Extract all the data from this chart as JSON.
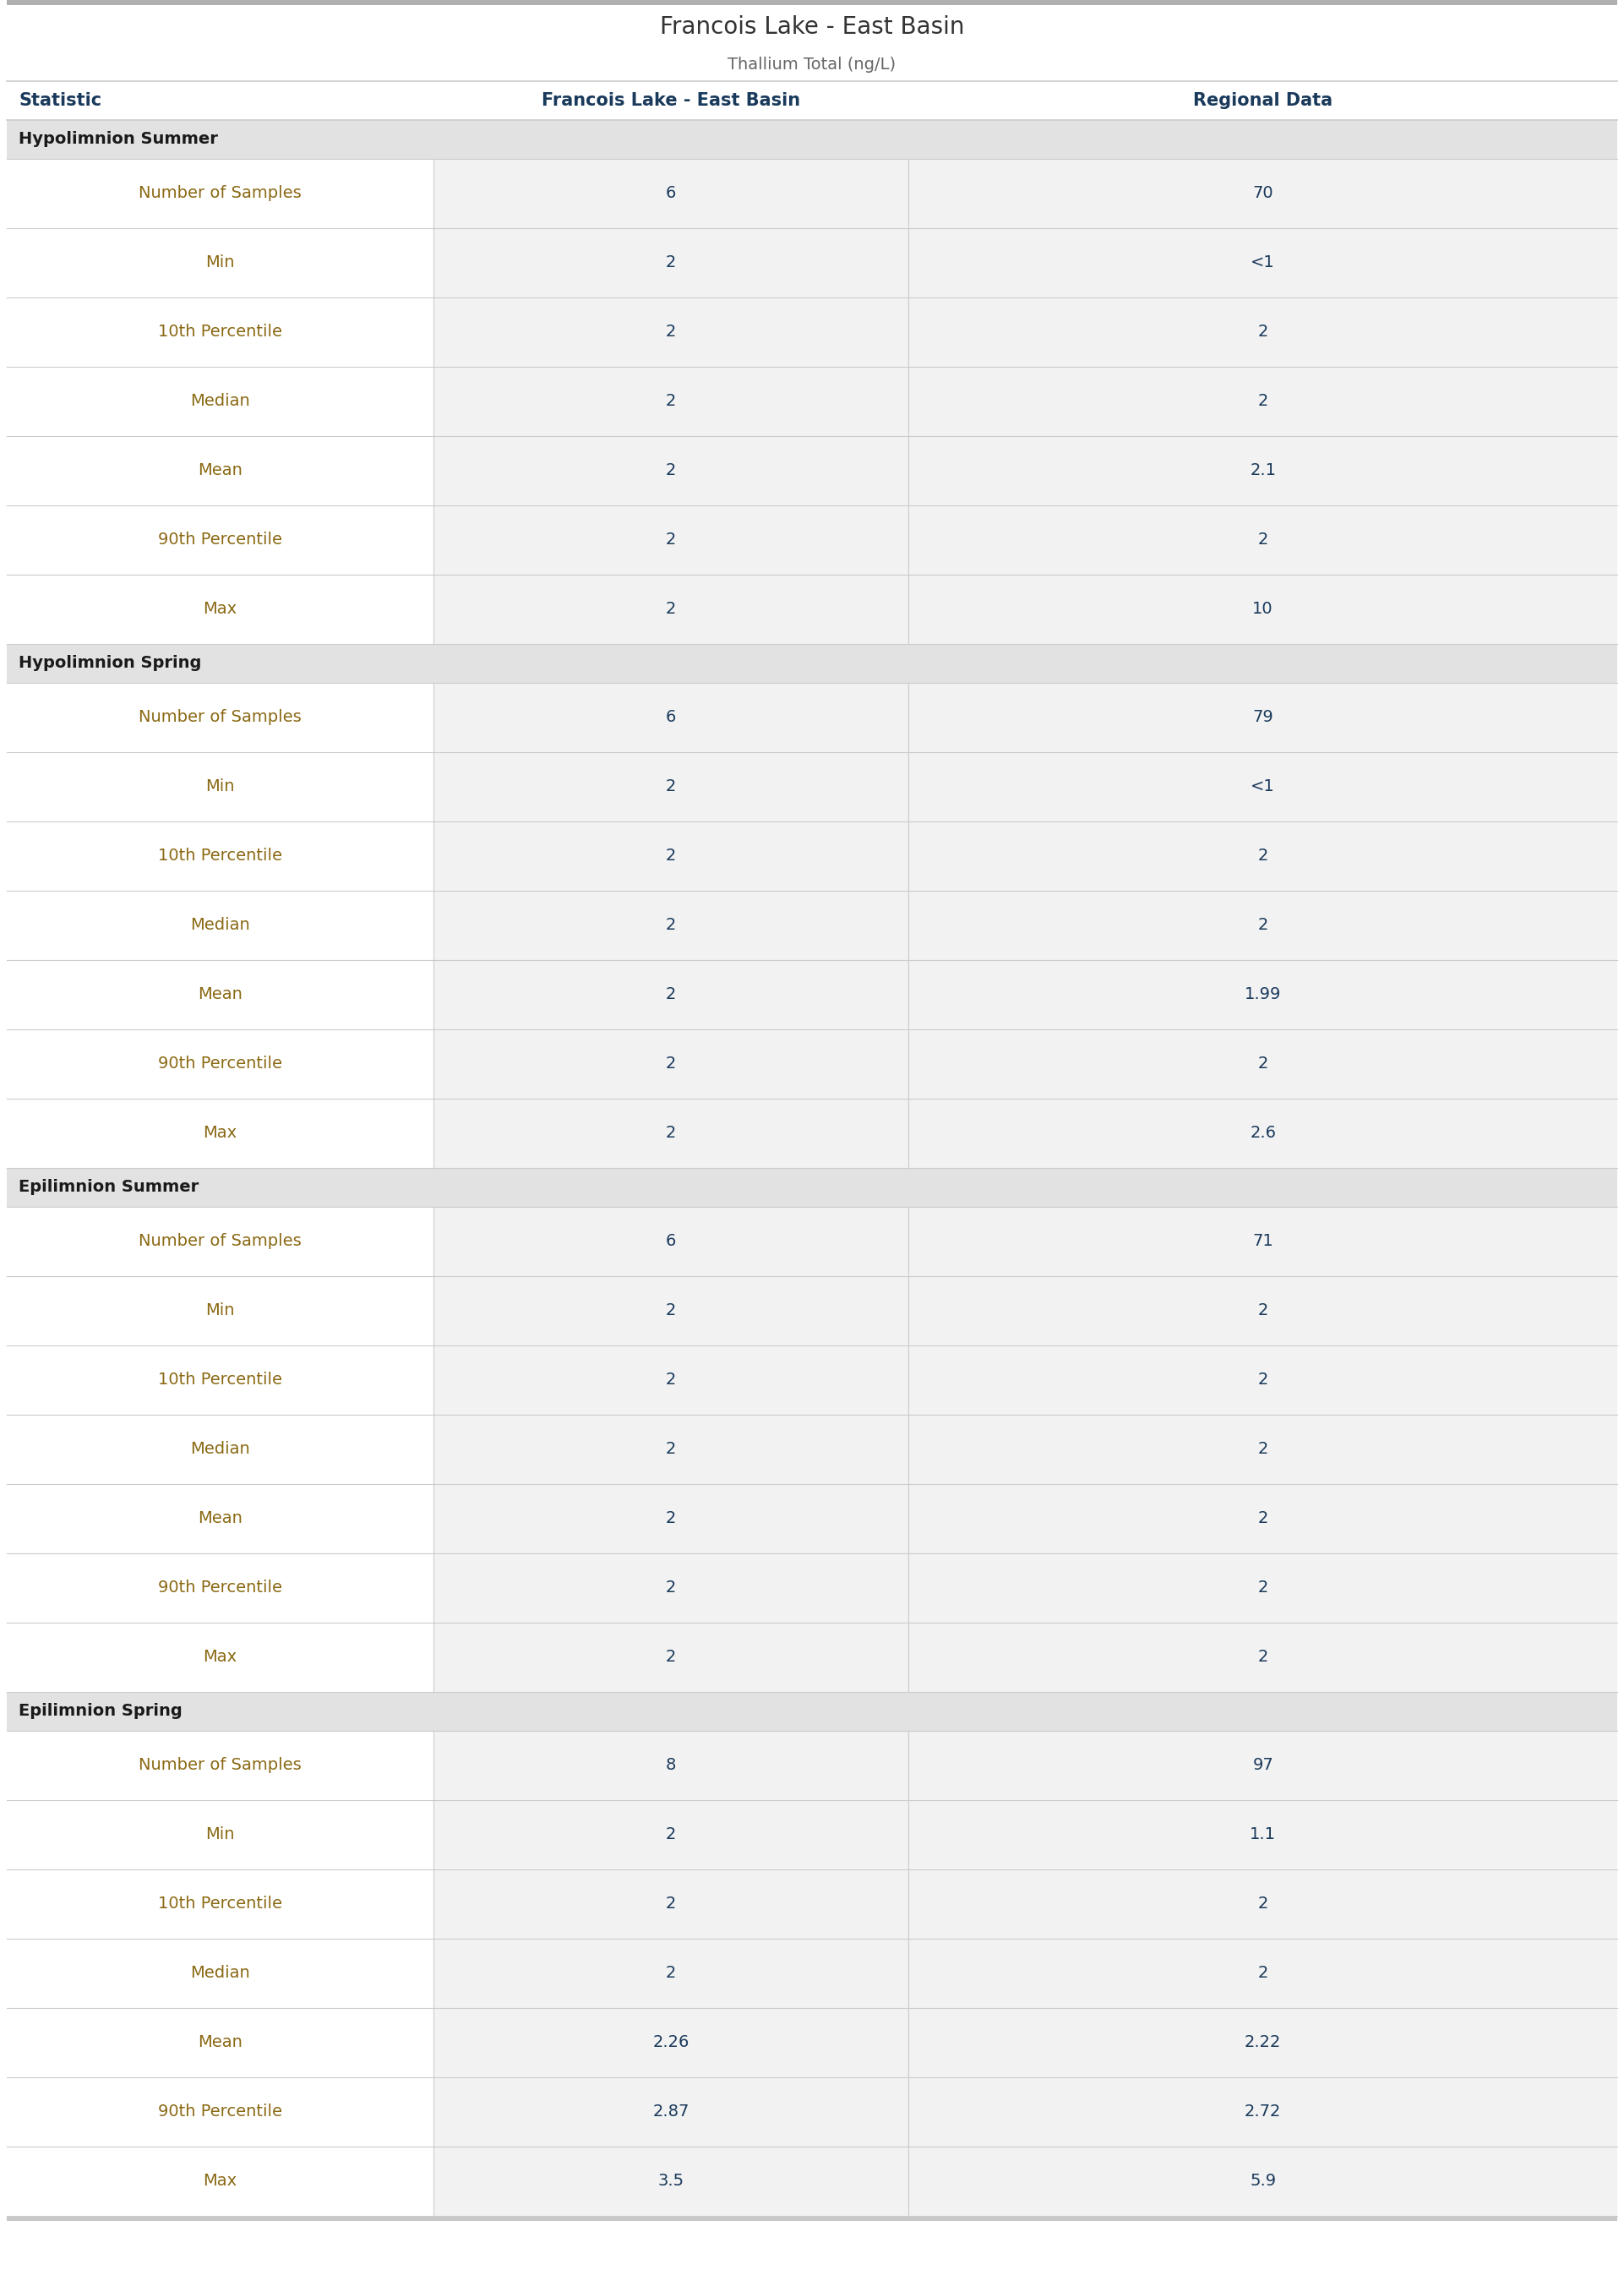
{
  "title": "Francois Lake - East Basin",
  "subtitle": "Thallium Total (ng/L)",
  "col_headers": [
    "Statistic",
    "Francois Lake - East Basin",
    "Regional Data"
  ],
  "sections": [
    {
      "name": "Hypolimnion Summer",
      "rows": [
        [
          "Number of Samples",
          "6",
          "70"
        ],
        [
          "Min",
          "2",
          "<1"
        ],
        [
          "10th Percentile",
          "2",
          "2"
        ],
        [
          "Median",
          "2",
          "2"
        ],
        [
          "Mean",
          "2",
          "2.1"
        ],
        [
          "90th Percentile",
          "2",
          "2"
        ],
        [
          "Max",
          "2",
          "10"
        ]
      ]
    },
    {
      "name": "Hypolimnion Spring",
      "rows": [
        [
          "Number of Samples",
          "6",
          "79"
        ],
        [
          "Min",
          "2",
          "<1"
        ],
        [
          "10th Percentile",
          "2",
          "2"
        ],
        [
          "Median",
          "2",
          "2"
        ],
        [
          "Mean",
          "2",
          "1.99"
        ],
        [
          "90th Percentile",
          "2",
          "2"
        ],
        [
          "Max",
          "2",
          "2.6"
        ]
      ]
    },
    {
      "name": "Epilimnion Summer",
      "rows": [
        [
          "Number of Samples",
          "6",
          "71"
        ],
        [
          "Min",
          "2",
          "2"
        ],
        [
          "10th Percentile",
          "2",
          "2"
        ],
        [
          "Median",
          "2",
          "2"
        ],
        [
          "Mean",
          "2",
          "2"
        ],
        [
          "90th Percentile",
          "2",
          "2"
        ],
        [
          "Max",
          "2",
          "2"
        ]
      ]
    },
    {
      "name": "Epilimnion Spring",
      "rows": [
        [
          "Number of Samples",
          "8",
          "97"
        ],
        [
          "Min",
          "2",
          "1.1"
        ],
        [
          "10th Percentile",
          "2",
          "2"
        ],
        [
          "Median",
          "2",
          "2"
        ],
        [
          "Mean",
          "2.26",
          "2.22"
        ],
        [
          "90th Percentile",
          "2.87",
          "2.72"
        ],
        [
          "Max",
          "3.5",
          "5.9"
        ]
      ]
    }
  ],
  "colors": {
    "title": "#333333",
    "subtitle": "#666666",
    "header_text": "#1a3a5c",
    "section_bg": "#e2e2e2",
    "section_text": "#1a1a1a",
    "row_bg_stat": "#ffffff",
    "row_bg_data": "#f2f2f2",
    "row_divider": "#cccccc",
    "statistic_text": "#8b6914",
    "data_text": "#1a3a5c",
    "top_bar": "#b0b0b0",
    "bottom_bar": "#c8c8c8",
    "col_divider": "#cccccc"
  },
  "col_split": 0.265,
  "title_fontsize": 20,
  "subtitle_fontsize": 14,
  "header_fontsize": 15,
  "section_fontsize": 14,
  "row_fontsize": 14
}
